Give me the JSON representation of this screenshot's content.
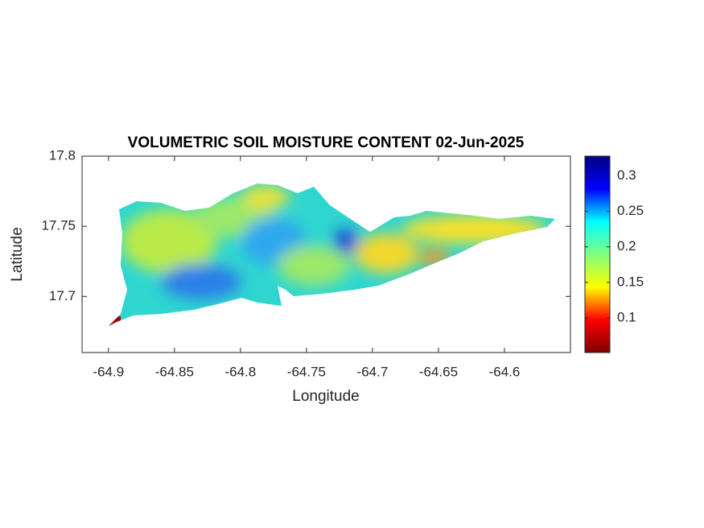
{
  "chart_data": {
    "type": "map",
    "title": "VOLUMETRIC SOIL MOISTURE CONTENT 02-Jun-2025",
    "xlabel": "Longitude",
    "ylabel": "Latitude",
    "xlim": [
      -64.92,
      -64.55
    ],
    "xticks": [
      -64.9,
      -64.85,
      -64.8,
      -64.75,
      -64.7,
      -64.65,
      -64.6
    ],
    "ylim": [
      17.66,
      17.8
    ],
    "yticks": [
      17.7,
      17.75,
      17.8
    ],
    "colorbar": {
      "colormap": "jet",
      "clim": [
        0.051,
        0.328
      ],
      "ticks": [
        0.1,
        0.15,
        0.2,
        0.25,
        0.3
      ]
    }
  }
}
